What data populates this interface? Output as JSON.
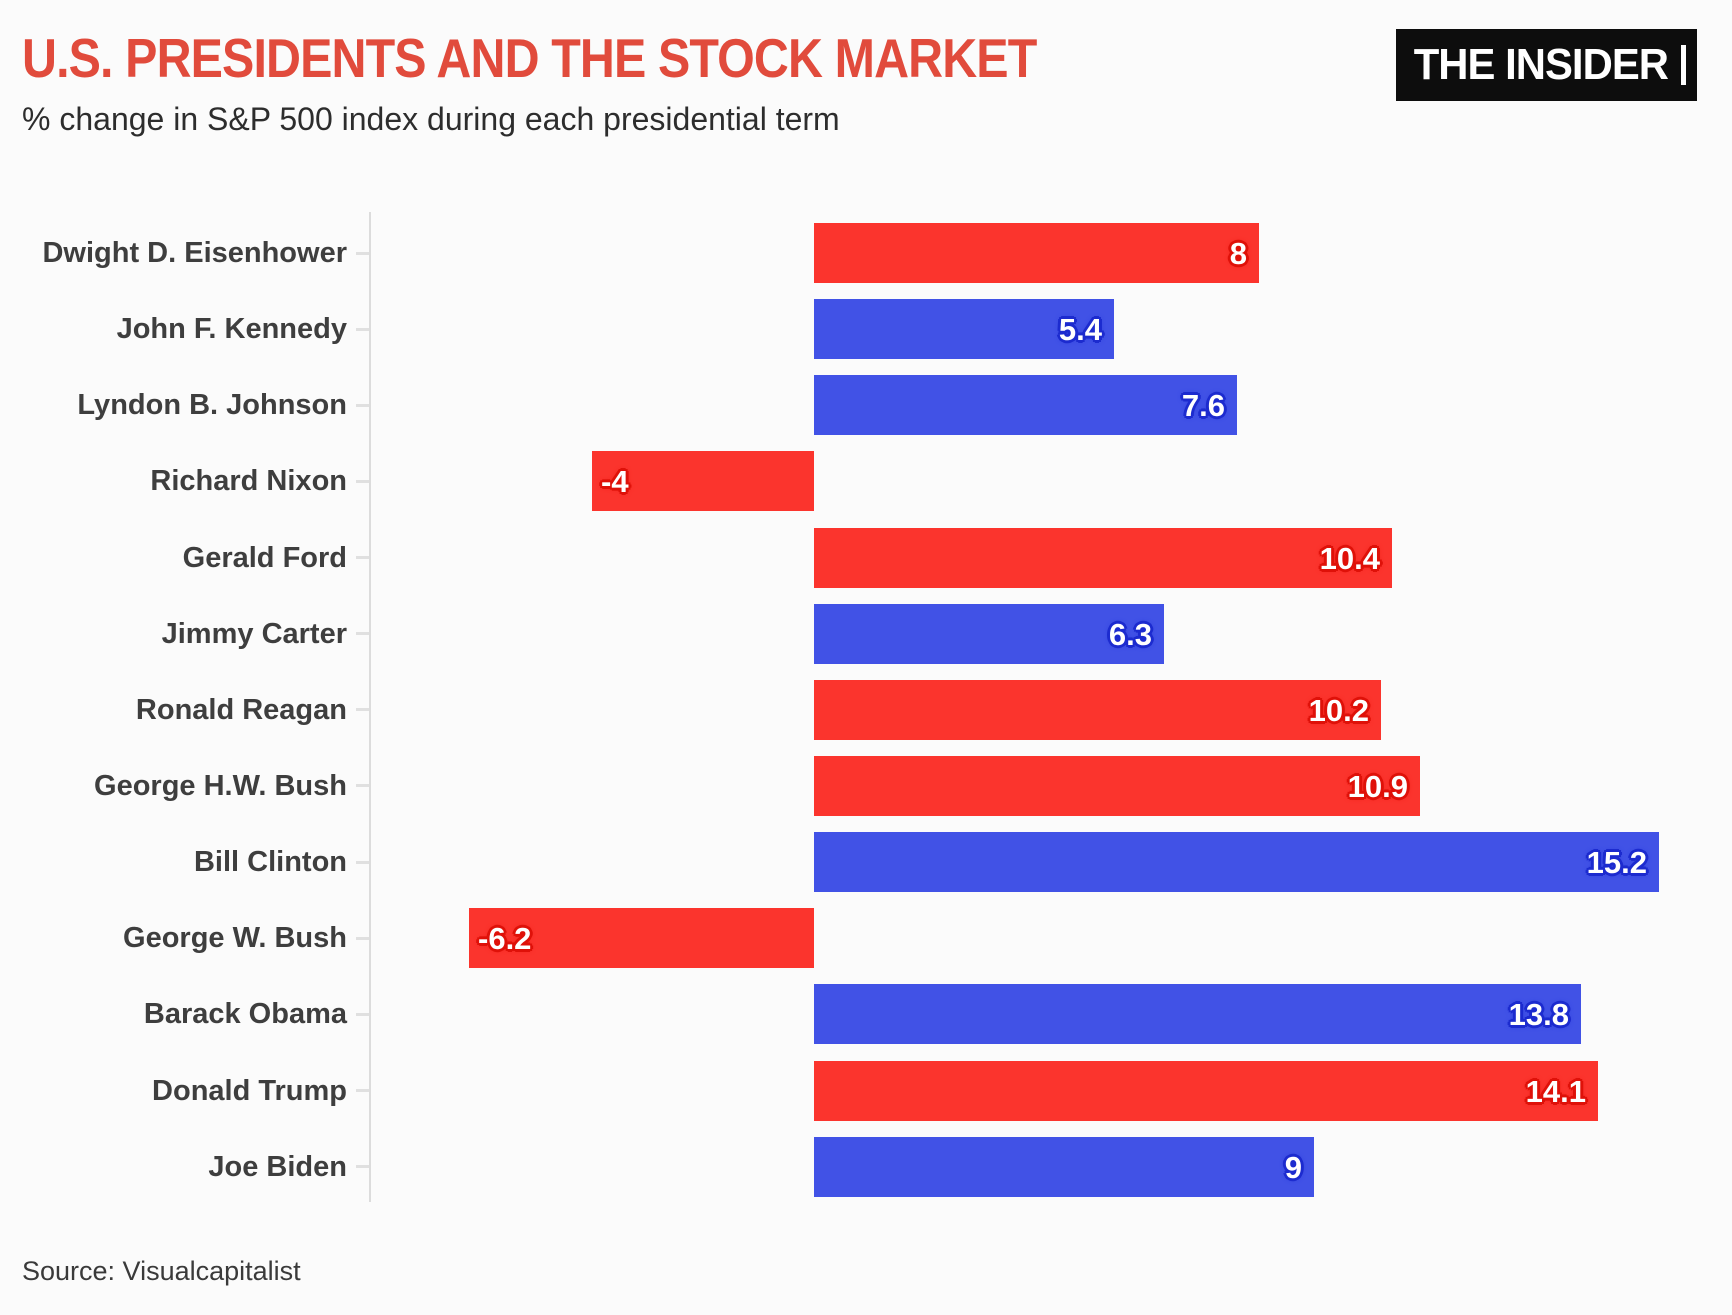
{
  "chart_data": {
    "type": "bar",
    "orientation": "horizontal",
    "title": "U.S. PRESIDENTS AND THE STOCK MARKET",
    "subtitle": "% change in S&P 500 index during each presidential term",
    "xlabel": "",
    "ylabel": "",
    "xlim": [
      -8,
      16.5
    ],
    "grid": false,
    "value_label_position": "inside-end",
    "legend": "none",
    "party_colors": {
      "R": {
        "bar": "#fb342d",
        "outline": "#df1109"
      },
      "D": {
        "bar": "#4152e6",
        "outline": "#1c2bcf"
      }
    },
    "categories": [
      "Dwight D. Eisenhower",
      "John F. Kennedy",
      "Lyndon B. Johnson",
      "Richard Nixon",
      "Gerald Ford",
      "Jimmy Carter",
      "Ronald Reagan",
      "George H.W. Bush",
      "Bill Clinton",
      "George W. Bush",
      "Barack Obama",
      "Donald Trump",
      "Joe Biden"
    ],
    "values": [
      8,
      5.4,
      7.6,
      -4,
      10.4,
      6.3,
      10.2,
      10.9,
      15.2,
      -6.2,
      13.8,
      14.1,
      9
    ],
    "rows": [
      {
        "president": "Dwight D. Eisenhower",
        "party": "R",
        "change_pct": 8,
        "label": "8"
      },
      {
        "president": "John F. Kennedy",
        "party": "D",
        "change_pct": 5.4,
        "label": "5.4"
      },
      {
        "president": "Lyndon B. Johnson",
        "party": "D",
        "change_pct": 7.6,
        "label": "7.6"
      },
      {
        "president": "Richard Nixon",
        "party": "R",
        "change_pct": -4,
        "label": "-4"
      },
      {
        "president": "Gerald Ford",
        "party": "R",
        "change_pct": 10.4,
        "label": "10.4"
      },
      {
        "president": "Jimmy Carter",
        "party": "D",
        "change_pct": 6.3,
        "label": "6.3"
      },
      {
        "president": "Ronald Reagan",
        "party": "R",
        "change_pct": 10.2,
        "label": "10.2"
      },
      {
        "president": "George H.W. Bush",
        "party": "R",
        "change_pct": 10.9,
        "label": "10.9"
      },
      {
        "president": "Bill Clinton",
        "party": "D",
        "change_pct": 15.2,
        "label": "15.2"
      },
      {
        "president": "George W. Bush",
        "party": "R",
        "change_pct": -6.2,
        "label": "-6.2"
      },
      {
        "president": "Barack Obama",
        "party": "D",
        "change_pct": 13.8,
        "label": "13.8"
      },
      {
        "president": "Donald Trump",
        "party": "R",
        "change_pct": 14.1,
        "label": "14.1"
      },
      {
        "president": "Joe Biden",
        "party": "D",
        "change_pct": 9,
        "label": "9"
      }
    ]
  },
  "header": {
    "title_color": "#e14b3c",
    "logo_text": "THE INSIDER",
    "logo_bg": "#0d0d0d",
    "logo_fg": "#ffffff"
  },
  "footer": {
    "source": "Source: Visualcapitalist"
  }
}
